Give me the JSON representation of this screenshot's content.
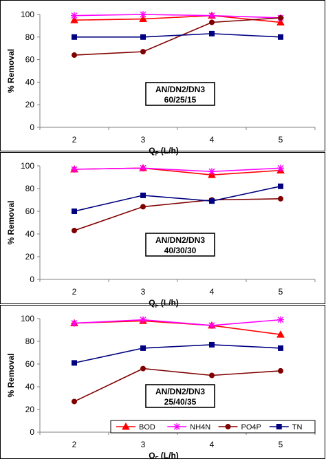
{
  "colors": {
    "BOD": "#ff0000",
    "NH4N": "#ff00ff",
    "PO4P": "#800000",
    "TN": "#000080",
    "axis": "#808080",
    "panel_border": "#000000"
  },
  "chart_data": [
    {
      "type": "line",
      "x": [
        2,
        3,
        4,
        5
      ],
      "ylim": [
        0,
        100
      ],
      "yticks": [
        0,
        20,
        40,
        60,
        80,
        100
      ],
      "ylabel": "% Removal",
      "xlabel_main": "Q",
      "xlabel_sub": "F",
      "xlabel_unit": " (L/h)",
      "annotation": [
        "AN/DN2/DN3",
        "60/25/15"
      ],
      "series": [
        {
          "name": "BOD",
          "marker": "triangle",
          "values": [
            95,
            96,
            99,
            93
          ]
        },
        {
          "name": "NH4N",
          "marker": "star",
          "values": [
            99,
            100,
            99,
            97
          ]
        },
        {
          "name": "PO4P",
          "marker": "circle",
          "values": [
            64,
            67,
            93,
            97
          ]
        },
        {
          "name": "TN",
          "marker": "square",
          "values": [
            80,
            80,
            83,
            80
          ]
        }
      ]
    },
    {
      "type": "line",
      "x": [
        2,
        3,
        4,
        5
      ],
      "ylim": [
        0,
        100
      ],
      "yticks": [
        0,
        20,
        40,
        60,
        80,
        100
      ],
      "ylabel": "% Removal",
      "xlabel_main": "Q",
      "xlabel_sub": "F",
      "xlabel_unit": " (L/h)",
      "annotation": [
        "AN/DN2/DN3",
        "40/30/30"
      ],
      "series": [
        {
          "name": "BOD",
          "marker": "triangle",
          "values": [
            97,
            98,
            92,
            96
          ]
        },
        {
          "name": "NH4N",
          "marker": "star",
          "values": [
            97,
            98,
            95,
            98
          ]
        },
        {
          "name": "PO4P",
          "marker": "circle",
          "values": [
            43,
            64,
            70,
            71
          ]
        },
        {
          "name": "TN",
          "marker": "square",
          "values": [
            60,
            74,
            69,
            82
          ]
        }
      ]
    },
    {
      "type": "line",
      "x": [
        2,
        3,
        4,
        5
      ],
      "ylim": [
        0,
        100
      ],
      "yticks": [
        0,
        20,
        40,
        60,
        80,
        100
      ],
      "ylabel": "% Removal",
      "xlabel_main": "Q",
      "xlabel_sub": "F",
      "xlabel_unit": " (L/h)",
      "annotation": [
        "AN/DN2/DN3",
        "25/40/35"
      ],
      "legend": [
        "BOD",
        "NH4N",
        "PO4P",
        "TN"
      ],
      "series": [
        {
          "name": "BOD",
          "marker": "triangle",
          "values": [
            96,
            98,
            94,
            86
          ]
        },
        {
          "name": "NH4N",
          "marker": "star",
          "values": [
            96,
            99,
            94,
            99
          ]
        },
        {
          "name": "PO4P",
          "marker": "circle",
          "values": [
            27,
            56,
            50,
            54
          ]
        },
        {
          "name": "TN",
          "marker": "square",
          "values": [
            61,
            74,
            77,
            74
          ]
        }
      ]
    }
  ]
}
